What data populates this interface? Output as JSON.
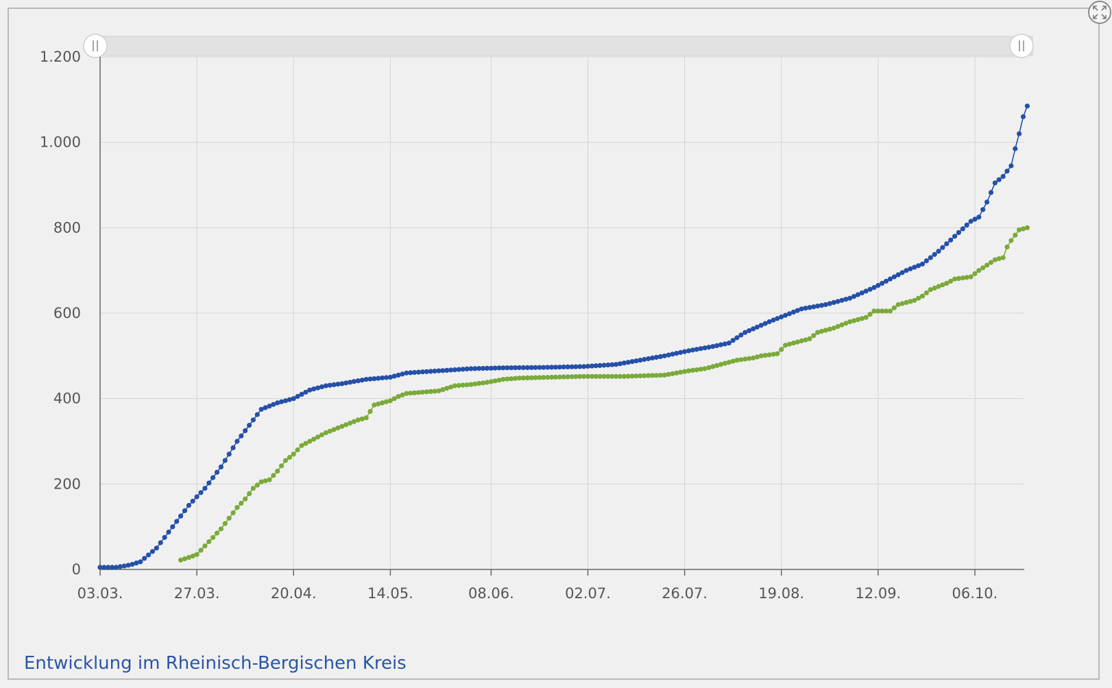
{
  "caption": "Entwicklung im Rheinisch-Bergischen Kreis",
  "expand_icon": "expand-icon",
  "colors": {
    "series_blue": "#2450a8",
    "series_green": "#7aaa3a",
    "grid": "#d4d4d4",
    "axis": "#666666",
    "caption": "#2a55a6"
  },
  "chart_data": {
    "type": "line",
    "title": "",
    "xlabel": "",
    "ylabel": "",
    "x_start": "03.03.",
    "x_step_days": 1,
    "x_ticks": [
      {
        "day": 0,
        "label": "03.03."
      },
      {
        "day": 24,
        "label": "27.03."
      },
      {
        "day": 48,
        "label": "20.04."
      },
      {
        "day": 72,
        "label": "14.05."
      },
      {
        "day": 97,
        "label": "08.06."
      },
      {
        "day": 121,
        "label": "02.07."
      },
      {
        "day": 145,
        "label": "26.07."
      },
      {
        "day": 169,
        "label": "19.08."
      },
      {
        "day": 193,
        "label": "12.09."
      },
      {
        "day": 217,
        "label": "06.10."
      }
    ],
    "y_ticks": [
      {
        "value": 0,
        "label": "0"
      },
      {
        "value": 200,
        "label": "200"
      },
      {
        "value": 400,
        "label": "400"
      },
      {
        "value": 600,
        "label": "600"
      },
      {
        "value": 800,
        "label": "800"
      },
      {
        "value": 1000,
        "label": "1.000"
      },
      {
        "value": 1200,
        "label": "1.200"
      }
    ],
    "ylim": [
      0,
      1200
    ],
    "xlim_days": [
      0,
      230
    ],
    "grid": true,
    "range_selector": true,
    "series": [
      {
        "name": "",
        "color": "#2450a8",
        "anchors": [
          [
            0,
            5
          ],
          [
            4,
            5
          ],
          [
            6,
            8
          ],
          [
            8,
            12
          ],
          [
            10,
            18
          ],
          [
            14,
            50
          ],
          [
            18,
            100
          ],
          [
            22,
            150
          ],
          [
            26,
            190
          ],
          [
            30,
            240
          ],
          [
            34,
            300
          ],
          [
            38,
            350
          ],
          [
            40,
            375
          ],
          [
            44,
            390
          ],
          [
            48,
            400
          ],
          [
            52,
            420
          ],
          [
            56,
            430
          ],
          [
            60,
            435
          ],
          [
            66,
            445
          ],
          [
            72,
            450
          ],
          [
            76,
            460
          ],
          [
            84,
            465
          ],
          [
            92,
            470
          ],
          [
            100,
            472
          ],
          [
            110,
            473
          ],
          [
            120,
            475
          ],
          [
            128,
            480
          ],
          [
            134,
            490
          ],
          [
            140,
            500
          ],
          [
            146,
            512
          ],
          [
            152,
            522
          ],
          [
            156,
            530
          ],
          [
            160,
            555
          ],
          [
            166,
            580
          ],
          [
            170,
            595
          ],
          [
            174,
            610
          ],
          [
            180,
            620
          ],
          [
            186,
            635
          ],
          [
            192,
            660
          ],
          [
            196,
            680
          ],
          [
            200,
            700
          ],
          [
            204,
            715
          ],
          [
            208,
            745
          ],
          [
            212,
            780
          ],
          [
            216,
            815
          ],
          [
            218,
            825
          ],
          [
            220,
            860
          ],
          [
            222,
            905
          ],
          [
            224,
            920
          ],
          [
            226,
            945
          ],
          [
            227,
            985
          ],
          [
            228,
            1020
          ],
          [
            229,
            1060
          ],
          [
            230,
            1085
          ]
        ]
      },
      {
        "name": "",
        "color": "#7aaa3a",
        "start_day": 20,
        "anchors": [
          [
            20,
            22
          ],
          [
            22,
            28
          ],
          [
            24,
            35
          ],
          [
            26,
            55
          ],
          [
            30,
            95
          ],
          [
            32,
            120
          ],
          [
            34,
            145
          ],
          [
            36,
            165
          ],
          [
            38,
            190
          ],
          [
            40,
            205
          ],
          [
            42,
            210
          ],
          [
            44,
            230
          ],
          [
            46,
            255
          ],
          [
            48,
            270
          ],
          [
            50,
            290
          ],
          [
            52,
            300
          ],
          [
            56,
            320
          ],
          [
            60,
            335
          ],
          [
            64,
            350
          ],
          [
            66,
            355
          ],
          [
            68,
            385
          ],
          [
            70,
            390
          ],
          [
            72,
            395
          ],
          [
            74,
            405
          ],
          [
            76,
            412
          ],
          [
            80,
            415
          ],
          [
            84,
            418
          ],
          [
            88,
            430
          ],
          [
            92,
            433
          ],
          [
            96,
            438
          ],
          [
            100,
            445
          ],
          [
            104,
            448
          ],
          [
            112,
            450
          ],
          [
            120,
            452
          ],
          [
            130,
            452
          ],
          [
            140,
            455
          ],
          [
            146,
            465
          ],
          [
            150,
            470
          ],
          [
            154,
            480
          ],
          [
            158,
            490
          ],
          [
            162,
            495
          ],
          [
            164,
            500
          ],
          [
            168,
            505
          ],
          [
            170,
            525
          ],
          [
            174,
            535
          ],
          [
            176,
            540
          ],
          [
            178,
            555
          ],
          [
            182,
            565
          ],
          [
            186,
            580
          ],
          [
            188,
            585
          ],
          [
            190,
            590
          ],
          [
            192,
            605
          ],
          [
            196,
            605
          ],
          [
            198,
            620
          ],
          [
            202,
            630
          ],
          [
            204,
            640
          ],
          [
            206,
            655
          ],
          [
            210,
            670
          ],
          [
            212,
            680
          ],
          [
            216,
            685
          ],
          [
            218,
            700
          ],
          [
            222,
            725
          ],
          [
            224,
            730
          ],
          [
            225,
            755
          ],
          [
            226,
            770
          ],
          [
            228,
            795
          ],
          [
            230,
            800
          ]
        ]
      }
    ]
  }
}
